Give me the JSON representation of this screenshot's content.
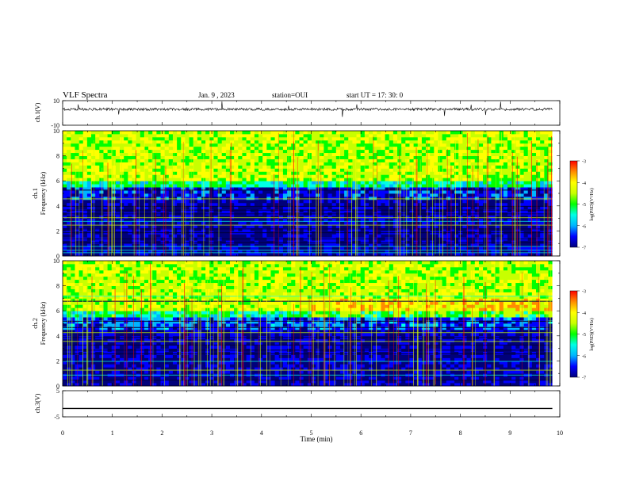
{
  "header": {
    "title": "VLF Spectra",
    "date": "Jan. 9 , 2023",
    "station": "station=OUI",
    "start_ut": "start UT = 17: 30: 0"
  },
  "chart_data": [
    {
      "type": "line",
      "panel": "waveform-ch1",
      "ylabel": "ch.1(V)",
      "ylim": [
        -10,
        10
      ],
      "yticks": [
        "10",
        "-10"
      ],
      "baseline": 3,
      "color": "#000000"
    },
    {
      "type": "heatmap",
      "panel": "spectrogram-ch1",
      "ylabel_line1": "ch.1",
      "ylabel_line2": "Frequency (kHz)",
      "ylim": [
        0,
        10
      ],
      "yticks": [
        "0",
        "2",
        "4",
        "6",
        "8",
        "10"
      ],
      "colorbar_label": "log(PSD)(V²/Hz)",
      "colorbar_ticks": [
        "-3",
        "-4",
        "-5",
        "-6",
        "-7"
      ],
      "colorbar_range": [
        -7,
        -3
      ]
    },
    {
      "type": "heatmap",
      "panel": "spectrogram-ch2",
      "ylabel_line1": "ch.2",
      "ylabel_line2": "Frequency (kHz)",
      "ylim": [
        0,
        10
      ],
      "yticks": [
        "0",
        "2",
        "4",
        "6",
        "8",
        "10"
      ],
      "colorbar_label": "log(PSD)(V²/Hz)",
      "colorbar_ticks": [
        "-3",
        "-4",
        "-5",
        "-6",
        "-7"
      ],
      "colorbar_range": [
        -7,
        -3
      ]
    },
    {
      "type": "line",
      "panel": "waveform-ch3",
      "ylabel": "ch.3(V)",
      "ylim": [
        -5,
        5
      ],
      "yticks": [
        "5",
        "-5"
      ],
      "baseline": -1.8,
      "color": "#000000"
    }
  ],
  "xaxis": {
    "label": "Time (min)",
    "ticks": [
      "0",
      "1",
      "2",
      "3",
      "4",
      "5",
      "6",
      "7",
      "8",
      "9",
      "10"
    ],
    "xlim": [
      0,
      10
    ],
    "data_end": 9.85
  },
  "colormap": [
    "#00007a",
    "#0000ff",
    "#00b4ff",
    "#00ffe6",
    "#00ff00",
    "#c8ff00",
    "#ffff00",
    "#ff8c00",
    "#ff0000",
    "#ffffff"
  ]
}
